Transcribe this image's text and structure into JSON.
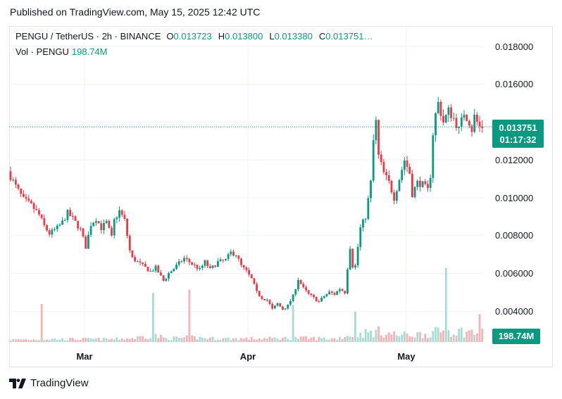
{
  "published": "Published on TradingView.com, May 15, 2025 12:42 UTC",
  "legend": {
    "symbol": "PENGU / TetherUS · 2h · BINANCE",
    "open_label": "O",
    "open": "0.013723",
    "high_label": "H",
    "high": "0.013800",
    "low_label": "L",
    "low": "0.013380",
    "close_label": "C",
    "close": "0.013751…",
    "volume_label": "Vol · PENGU",
    "volume": "198.74M"
  },
  "price_tag": {
    "price": "0.013751",
    "countdown": "01:17:32"
  },
  "volume_tag": "198.74M",
  "brand": "TradingView",
  "colors": {
    "up": "#089981",
    "down": "#f23645",
    "vol_up": "#a7dcd3",
    "vol_down": "#f7b2b7",
    "grid": "#f0f3fa"
  },
  "chart_data": {
    "type": "candlestick",
    "y_ticks": [
      "0.018000",
      "0.016000",
      "0.012000",
      "0.010000",
      "0.008000",
      "0.006000",
      "0.004000"
    ],
    "x_ticks": [
      "Mar",
      "Apr",
      "May"
    ],
    "ylim": [
      0.0028,
      0.0186
    ],
    "current_price": 0.013751,
    "price_path": [
      [
        0,
        0.0114
      ],
      [
        3,
        0.0106
      ],
      [
        6,
        0.0099
      ],
      [
        9,
        0.0096
      ],
      [
        12,
        0.0091
      ],
      [
        14,
        0.0085
      ],
      [
        16,
        0.0081
      ],
      [
        19,
        0.0084
      ],
      [
        21,
        0.0087
      ],
      [
        23,
        0.0092
      ],
      [
        25,
        0.0089
      ],
      [
        28,
        0.0083
      ],
      [
        30,
        0.0074
      ],
      [
        32,
        0.0086
      ],
      [
        34,
        0.0089
      ],
      [
        36,
        0.0084
      ],
      [
        38,
        0.0087
      ],
      [
        40,
        0.0079
      ],
      [
        41,
        0.0088
      ],
      [
        43,
        0.0093
      ],
      [
        45,
        0.0088
      ],
      [
        47,
        0.0072
      ],
      [
        48,
        0.0068
      ],
      [
        50,
        0.0066
      ],
      [
        53,
        0.0063
      ],
      [
        55,
        0.0061
      ],
      [
        57,
        0.0063
      ],
      [
        60,
        0.0056
      ],
      [
        62,
        0.006
      ],
      [
        65,
        0.0064
      ],
      [
        68,
        0.0068
      ],
      [
        71,
        0.0065
      ],
      [
        74,
        0.0062
      ],
      [
        76,
        0.0066
      ],
      [
        78,
        0.0062
      ],
      [
        81,
        0.0066
      ],
      [
        84,
        0.0067
      ],
      [
        86,
        0.0071
      ],
      [
        88,
        0.007
      ],
      [
        90,
        0.0064
      ],
      [
        92,
        0.0061
      ],
      [
        94,
        0.0057
      ],
      [
        96,
        0.005
      ],
      [
        98,
        0.0047
      ],
      [
        100,
        0.0046
      ],
      [
        102,
        0.0041
      ],
      [
        104,
        0.0044
      ],
      [
        106,
        0.0041
      ],
      [
        108,
        0.0043
      ],
      [
        110,
        0.0048
      ],
      [
        112,
        0.0057
      ],
      [
        114,
        0.0052
      ],
      [
        116,
        0.0049
      ],
      [
        118,
        0.0047
      ],
      [
        120,
        0.0045
      ],
      [
        122,
        0.0048
      ],
      [
        124,
        0.005
      ],
      [
        126,
        0.0049
      ],
      [
        128,
        0.0052
      ],
      [
        130,
        0.005
      ],
      [
        131,
        0.0063
      ],
      [
        132,
        0.0074
      ],
      [
        133,
        0.0064
      ],
      [
        134,
        0.0064
      ],
      [
        136,
        0.0084
      ],
      [
        138,
        0.009
      ],
      [
        140,
        0.0108
      ],
      [
        141,
        0.013
      ],
      [
        142,
        0.014
      ],
      [
        143,
        0.0122
      ],
      [
        145,
        0.0113
      ],
      [
        147,
        0.0108
      ],
      [
        149,
        0.01
      ],
      [
        151,
        0.011
      ],
      [
        153,
        0.012
      ],
      [
        155,
        0.0113
      ],
      [
        156,
        0.0102
      ],
      [
        158,
        0.0108
      ],
      [
        160,
        0.0107
      ],
      [
        162,
        0.0104
      ],
      [
        163,
        0.0112
      ],
      [
        164,
        0.0134
      ],
      [
        165,
        0.0144
      ],
      [
        166,
        0.015
      ],
      [
        168,
        0.014
      ],
      [
        170,
        0.0146
      ],
      [
        172,
        0.0142
      ],
      [
        174,
        0.0136
      ],
      [
        176,
        0.0145
      ],
      [
        178,
        0.014
      ],
      [
        179,
        0.0136
      ],
      [
        180,
        0.0143
      ],
      [
        181,
        0.014
      ],
      [
        182,
        0.01375
      ]
    ],
    "volume_path": [
      [
        0,
        0.2
      ],
      [
        20,
        0.25
      ],
      [
        40,
        0.25
      ],
      [
        48,
        0.35
      ],
      [
        55,
        0.6
      ],
      [
        60,
        0.3
      ],
      [
        70,
        0.4
      ],
      [
        80,
        0.3
      ],
      [
        96,
        0.3
      ],
      [
        110,
        0.35
      ],
      [
        125,
        0.3
      ],
      [
        133,
        0.7
      ],
      [
        142,
        0.9
      ],
      [
        150,
        0.6
      ],
      [
        160,
        0.7
      ],
      [
        168,
        1.0
      ],
      [
        182,
        0.8
      ]
    ],
    "volume_spikes": [
      [
        12,
        4.5
      ],
      [
        55,
        5.8
      ],
      [
        69,
        6.2
      ],
      [
        109,
        4.4
      ],
      [
        133,
        3.6
      ],
      [
        168,
        8.8
      ],
      [
        181,
        3.3
      ]
    ]
  }
}
